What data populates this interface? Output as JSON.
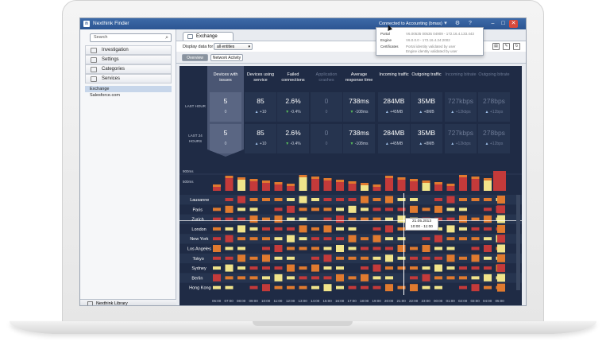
{
  "window": {
    "title": "Nexthink Finder",
    "connection": "Connected to Accounting (bmas)"
  },
  "sidebar": {
    "search_placeholder": "Search",
    "items": [
      {
        "label": "Investigation"
      },
      {
        "label": "Settings"
      },
      {
        "label": "Categories"
      },
      {
        "label": "Services"
      }
    ],
    "tree": [
      "Exchange",
      "Salesforce.com"
    ],
    "library": "Nexthink Library"
  },
  "tab": {
    "label": "Exchange"
  },
  "toolbar": {
    "display_label": "Display data for",
    "entity_select": "all entities"
  },
  "subtabs": [
    "Overview",
    "Network Activity"
  ],
  "popup": {
    "rows": [
      {
        "label": "Portal",
        "value": "V6.00535 00535 04909 - 172.16.4.133.443"
      },
      {
        "label": "Engine",
        "value": "V6.0.0.0 - 172.16.4.24:2002"
      },
      {
        "label": "Certificates",
        "value": "Portal identity validated by user"
      },
      {
        "label": "",
        "value": "Engine identity validated by user"
      }
    ]
  },
  "dashboard": {
    "columns": [
      "Devices with issues",
      "Devices using service",
      "Failed connections",
      "Application crashes",
      "Average response time",
      "Incoming traffic",
      "Outgoing traffic",
      "Incoming bitrate",
      "Outgoing bitrate"
    ],
    "row_labels": [
      "LAST HOUR",
      "LAST 24 HOURS"
    ],
    "rows": [
      [
        "5",
        "85",
        "2.6%",
        "0",
        "738ms",
        "284MB",
        "35MB",
        "727kbps",
        "278bps"
      ],
      [
        "5",
        "85",
        "2.6%",
        "0",
        "738ms",
        "284MB",
        "35MB",
        "727kbps",
        "278bps"
      ]
    ],
    "deltas": [
      [
        "0",
        "+10",
        "-0.4%",
        "0",
        "-108ms",
        "+45MB",
        "+8MB",
        "+12kbps",
        "+12bps"
      ],
      [
        "0",
        "+10",
        "-0.4%",
        "0",
        "-108ms",
        "+45MB",
        "+8MB",
        "+12kbps",
        "+12bps"
      ]
    ],
    "strip_labels": [
      "900ms",
      "500ms"
    ],
    "cities": [
      "Lausanne",
      "Paris",
      "Zurich",
      "London",
      "New York",
      "Los Angeles",
      "Tokyo",
      "Sydney",
      "Berlin",
      "Hong Kong"
    ],
    "times": [
      "06:00",
      "07:00",
      "08:00",
      "09:00",
      "10:00",
      "11:00",
      "12:00",
      "13:00",
      "14:00",
      "15:00",
      "16:00",
      "17:00",
      "18:00",
      "19:00",
      "20:00",
      "21:00",
      "22:00",
      "23:00",
      "00:00",
      "01:00",
      "02:00",
      "03:00",
      "04:00",
      "05:00"
    ],
    "tooltip": {
      "date": "21.05.2013",
      "range": "10:00 - 11:00"
    },
    "colors": {
      "low": "#f0e48a",
      "mid": "#e07a2f",
      "high": "#c43a3a",
      "bg": "#1f2b45"
    }
  }
}
